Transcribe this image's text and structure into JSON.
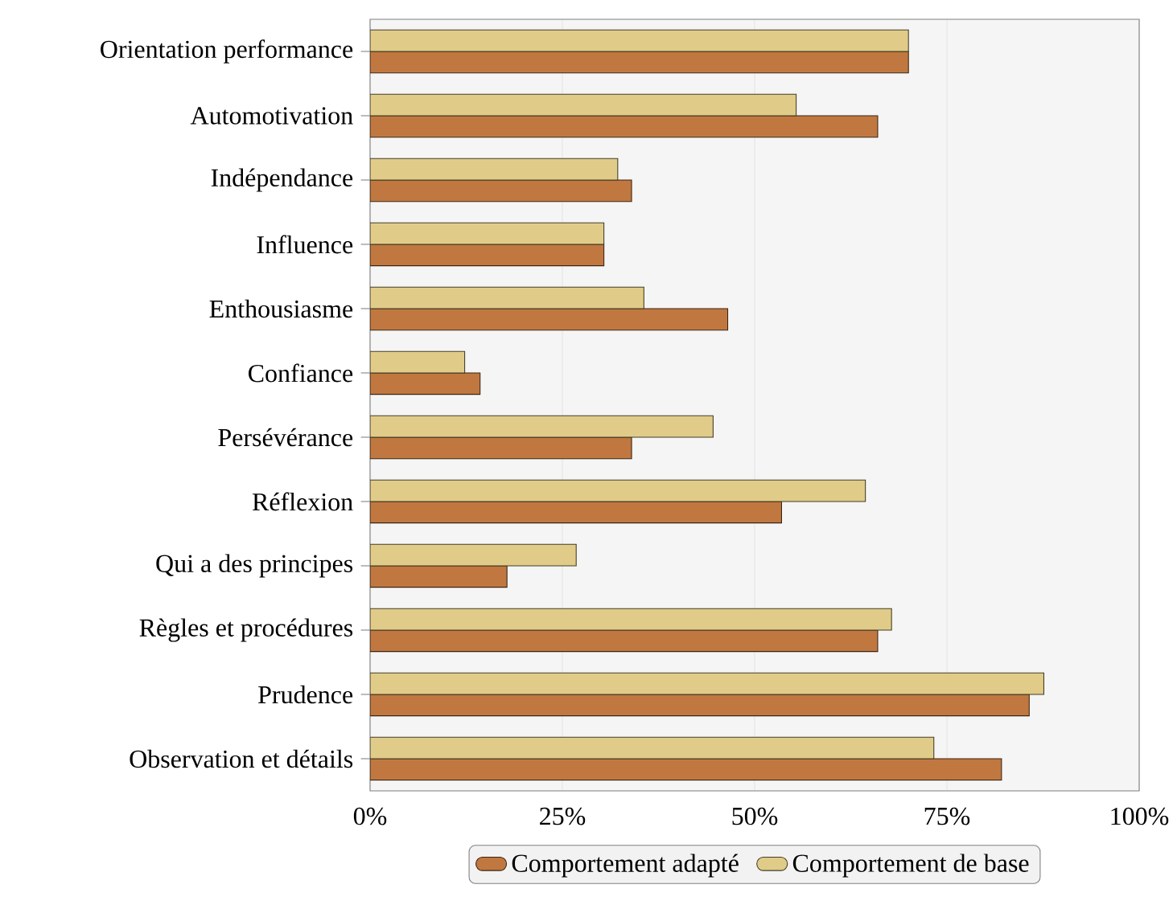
{
  "chart_data": {
    "type": "bar",
    "orientation": "horizontal",
    "categories": [
      "Orientation performance",
      "Automotivation",
      "Indépendance",
      "Influence",
      "Enthousiasme",
      "Confiance",
      "Persévérance",
      "Réflexion",
      "Qui a des principes",
      "Règles et procédures",
      "Prudence",
      "Observation et détails"
    ],
    "series": [
      {
        "name": "Comportement adapté",
        "color": "#c07840",
        "values": [
          70,
          66,
          34,
          30.4,
          46.5,
          14.3,
          34,
          53.5,
          17.8,
          66,
          85.7,
          82.1
        ]
      },
      {
        "name": "Comportement de base",
        "color": "#e0cc88",
        "values": [
          70,
          55.4,
          32.2,
          30.4,
          35.6,
          12.3,
          44.6,
          64.4,
          26.8,
          67.8,
          87.6,
          73.3
        ]
      }
    ],
    "xlim": [
      0,
      100
    ],
    "xticks": [
      {
        "value": 0,
        "label": "0%"
      },
      {
        "value": 25,
        "label": "25%"
      },
      {
        "value": 50,
        "label": "50%"
      },
      {
        "value": 75,
        "label": "75%"
      },
      {
        "value": 100,
        "label": "100%"
      }
    ],
    "grid": "x",
    "legend": "bottom"
  }
}
